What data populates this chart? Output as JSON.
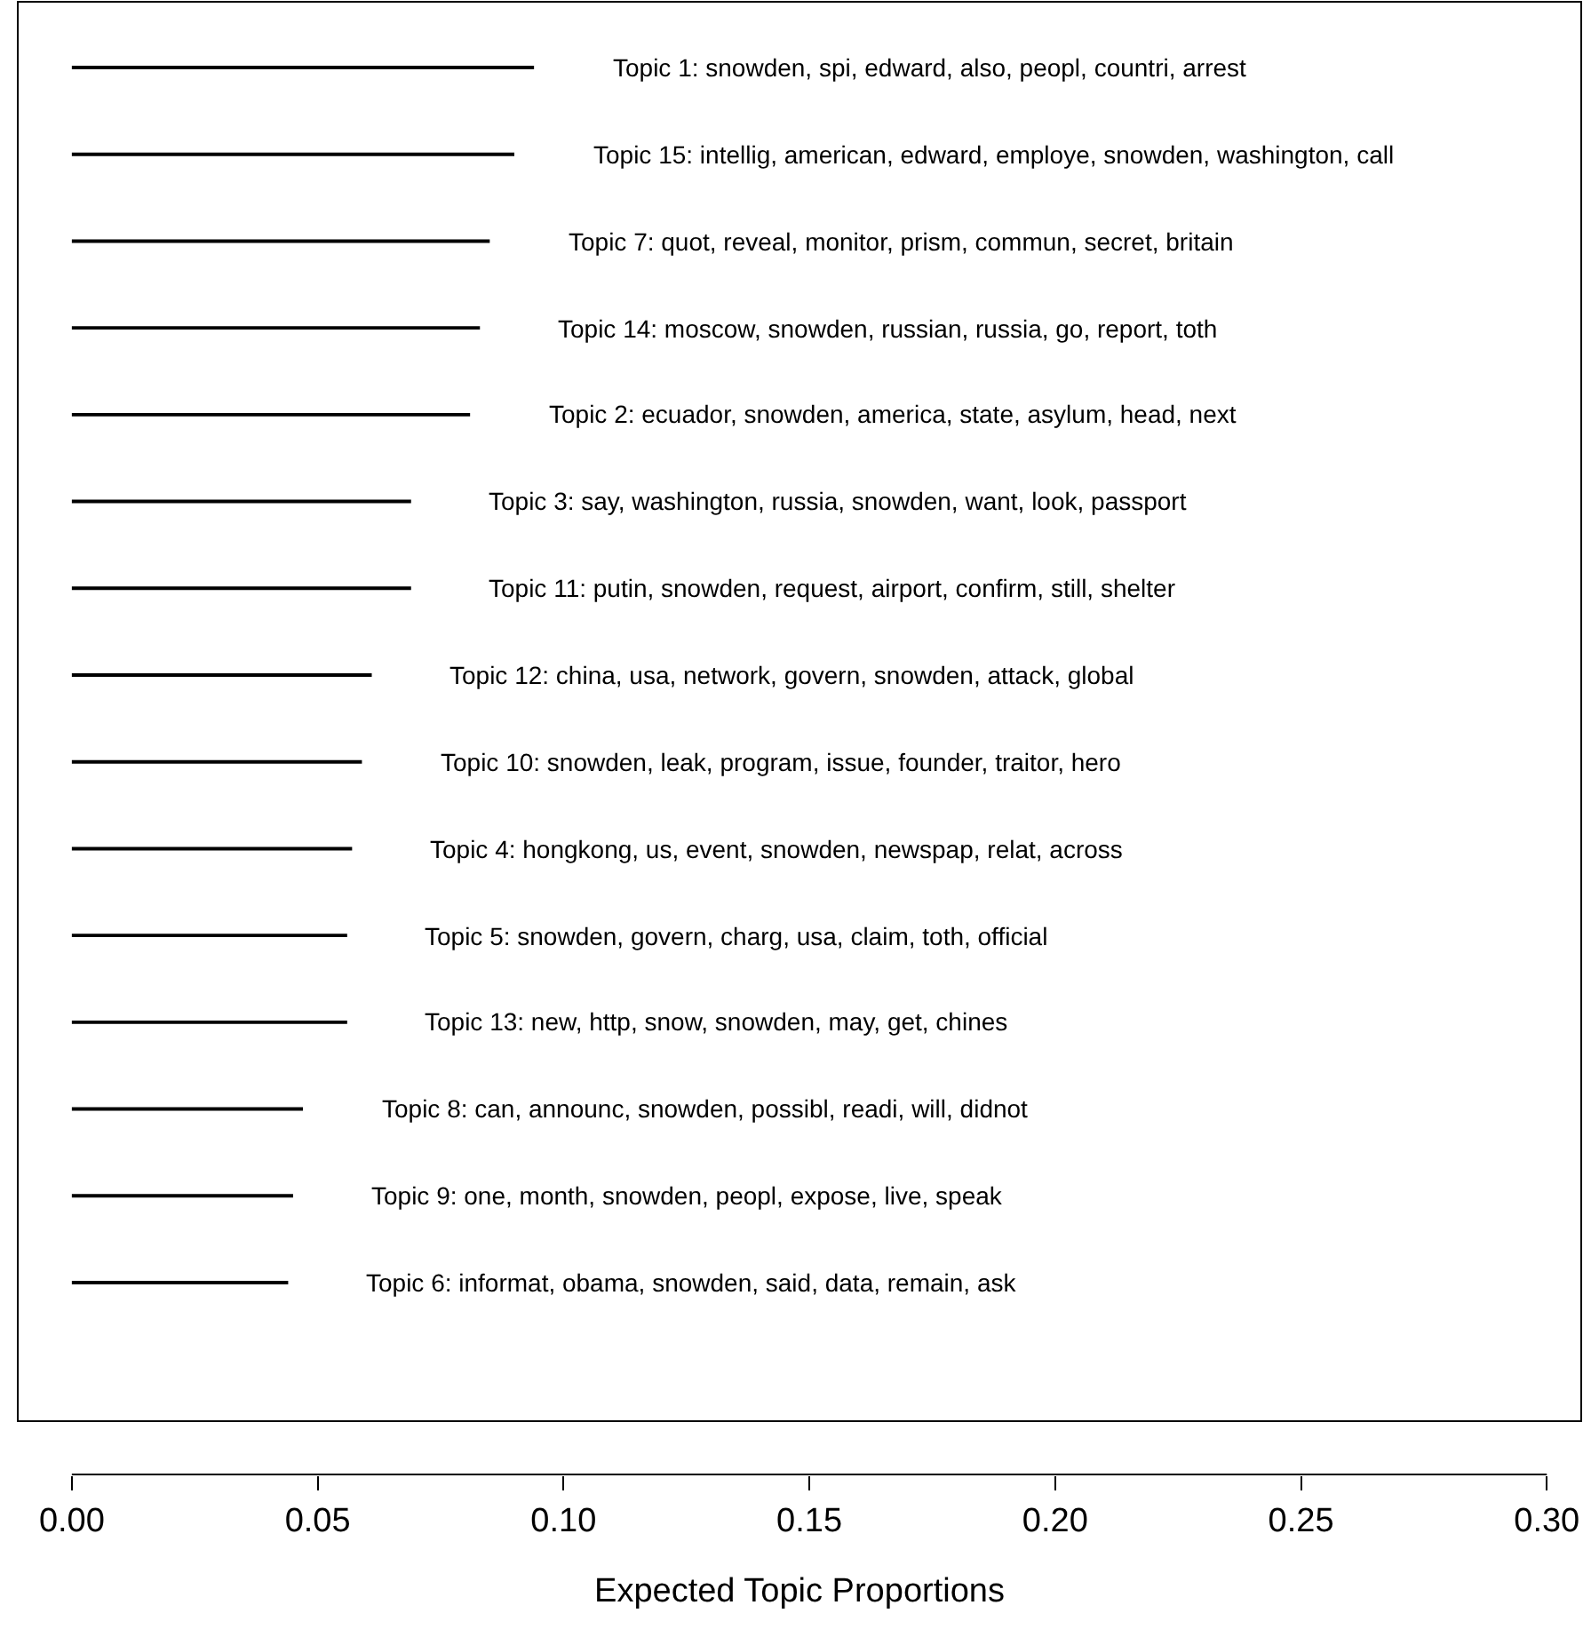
{
  "chart_data": {
    "type": "bar",
    "orientation": "horizontal",
    "xlabel": "Expected Topic Proportions",
    "categories": [
      "Topic 1: snowden, spi, edward, also, peopl, countri, arrest",
      "Topic 15: intellig, american, edward, employe, snowden, washington, call",
      "Topic 7: quot, reveal, monitor, prism, commun, secret, britain",
      "Topic 14: moscow, snowden, russian, russia, go, report, toth",
      "Topic 2: ecuador, snowden, america, state, asylum, head, next",
      "Topic 3: say, washington, russia, snowden, want, look, passport",
      "Topic 11: putin, snowden, request, airport, confirm, still, shelter",
      "Topic 12: china, usa, network, govern, snowden, attack, global",
      "Topic 10: snowden, leak, program, issue, founder, traitor, hero",
      "Topic 4: hongkong, us, event, snowden, newspap, relat, across",
      "Topic 5: snowden, govern, charg, usa, claim, toth, official",
      "Topic 13: new, http, snow, snowden, may, get, chines",
      "Topic 8: can, announc, snowden, possibl, readi, will, didnot",
      "Topic 9: one, month, snowden, peopl, expose, live, speak",
      "Topic 6: informat, obama, snowden, said, data, remain, ask"
    ],
    "values": [
      0.094,
      0.09,
      0.085,
      0.083,
      0.081,
      0.069,
      0.069,
      0.061,
      0.059,
      0.057,
      0.056,
      0.056,
      0.047,
      0.045,
      0.044
    ],
    "color": "#000000",
    "xlim": [
      -0.011,
      0.307
    ],
    "xticks": [
      {
        "value": 0,
        "label": "0.00"
      },
      {
        "value": 0.05,
        "label": "0.05"
      },
      {
        "value": 0.1,
        "label": "0.10"
      },
      {
        "value": 0.15,
        "label": "0.15"
      },
      {
        "value": 0.2,
        "label": "0.20"
      },
      {
        "value": 0.25,
        "label": "0.25"
      },
      {
        "value": 0.3,
        "label": "0.30"
      }
    ],
    "tick_labels": "x",
    "grid": false,
    "legend": false
  }
}
